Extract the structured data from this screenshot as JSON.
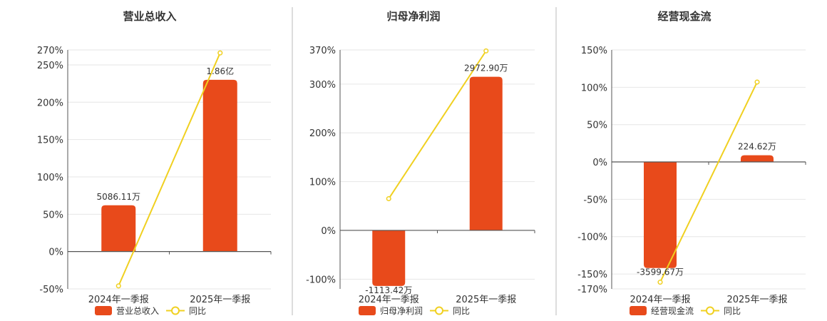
{
  "colors": {
    "bar": "#e84a1b",
    "line": "#f0d020"
  },
  "chart_data": [
    {
      "type": "bar",
      "title": "营业总收入",
      "categories": [
        "2024年一季报",
        "2025年一季报"
      ],
      "series": [
        {
          "name": "营业总收入",
          "type": "bar",
          "values": [
            62,
            230
          ],
          "labels": [
            "5086.11万",
            "1.86亿"
          ]
        },
        {
          "name": "同比",
          "type": "line",
          "values": [
            -46,
            266
          ]
        }
      ],
      "ylim": [
        -50,
        270
      ],
      "yticks": [
        -50,
        0,
        50,
        100,
        150,
        200,
        250,
        270
      ],
      "ytick_labels": [
        "-50%",
        "0%",
        "50%",
        "100%",
        "150%",
        "200%",
        "250%",
        "270%"
      ],
      "grid": true,
      "legend": "bottom"
    },
    {
      "type": "bar",
      "title": "归母净利润",
      "categories": [
        "2024年一季报",
        "2025年一季报"
      ],
      "series": [
        {
          "name": "归母净利润",
          "type": "bar",
          "values": [
            -114,
            315
          ],
          "labels": [
            "-1113.42万",
            "2972.90万"
          ]
        },
        {
          "name": "同比",
          "type": "line",
          "values": [
            65,
            368
          ]
        }
      ],
      "ylim": [
        -120,
        370
      ],
      "yticks": [
        -100,
        0,
        100,
        200,
        300,
        370
      ],
      "ytick_labels": [
        "-100%",
        "0%",
        "100%",
        "200%",
        "300%",
        "370%"
      ],
      "grid": true,
      "legend": "bottom"
    },
    {
      "type": "bar",
      "title": "经营现金流",
      "categories": [
        "2024年一季报",
        "2025年一季报"
      ],
      "series": [
        {
          "name": "经营现金流",
          "type": "bar",
          "values": [
            -142,
            9
          ],
          "labels": [
            "-3599.67万",
            "224.62万"
          ]
        },
        {
          "name": "同比",
          "type": "line",
          "values": [
            -161,
            107
          ]
        }
      ],
      "ylim": [
        -170,
        150
      ],
      "yticks": [
        -170,
        -150,
        -100,
        -50,
        0,
        50,
        100,
        150
      ],
      "ytick_labels": [
        "-170%",
        "-150%",
        "-100%",
        "-50%",
        "0%",
        "50%",
        "100%",
        "150%"
      ],
      "grid": true,
      "legend": "bottom"
    }
  ]
}
